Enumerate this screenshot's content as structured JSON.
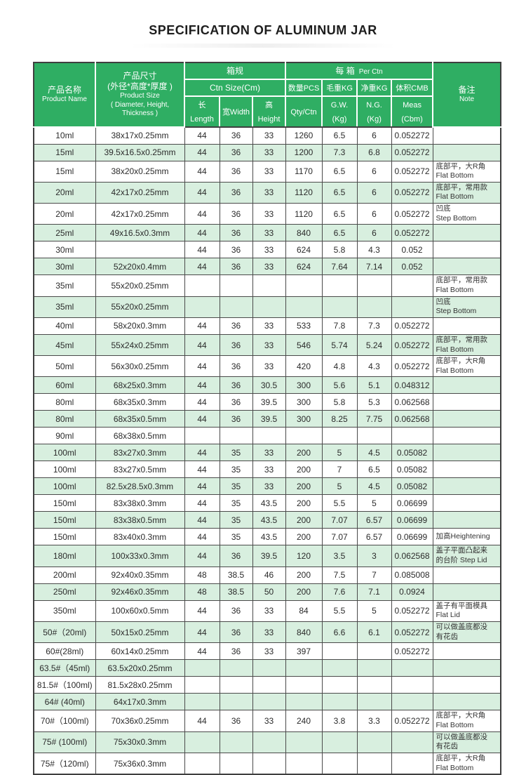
{
  "title": "SPECIFICATION OF ALUMINUM JAR",
  "colors": {
    "header_green": "#2fae63",
    "row_light_green": "#d8efdf",
    "row_white": "#ffffff",
    "border_dark": "#4a4a4a",
    "header_text": "#ffffff",
    "body_text": "#2b2b2b"
  },
  "table": {
    "header": {
      "product_name_zh": "产品名称",
      "product_name_en": "Product Name",
      "product_size_zh": "产品尺寸",
      "product_size_zh2": "(外径*高度*厚度 )",
      "product_size_en": "Product Size",
      "product_size_en2": "( Diameter, Height, Thickness )",
      "ctn_group_zh": "箱规",
      "ctn_group_en": "Ctn Size(Cm)",
      "length": "长Length",
      "width": "宽Width",
      "height": "高Height",
      "per_ctn_zh": "每  箱",
      "per_ctn_en": "Per Ctn",
      "qty_zh": "数量PCS",
      "qty_en": "Qty/Ctn",
      "gw_zh": "毛重KG",
      "gw_en": "G.W.(Kg)",
      "nw_zh": "净重KG",
      "nw_en": "N.G.(Kg)",
      "meas_zh": "体积CMB",
      "meas_en": "Meas (Cbm)",
      "note_zh": "备注",
      "note_en": "Note"
    },
    "rows": [
      {
        "name": "10ml",
        "size": "38x17x0.25mm",
        "l": "44",
        "w": "36",
        "h": "33",
        "qty": "1260",
        "gw": "6.5",
        "nw": "6",
        "meas": "0.052272",
        "note": []
      },
      {
        "name": "15ml",
        "size": "39.5x16.5x0.25mm",
        "l": "44",
        "w": "36",
        "h": "33",
        "qty": "1200",
        "gw": "7.3",
        "nw": "6.8",
        "meas": "0.052272",
        "note": []
      },
      {
        "name": "15ml",
        "size": "38x20x0.25mm",
        "l": "44",
        "w": "36",
        "h": "33",
        "qty": "1170",
        "gw": "6.5",
        "nw": "6",
        "meas": "0.052272",
        "note": [
          "底部平，大R角",
          "Flat Bottom"
        ]
      },
      {
        "name": "20ml",
        "size": "42x17x0.25mm",
        "l": "44",
        "w": "36",
        "h": "33",
        "qty": "1120",
        "gw": "6.5",
        "nw": "6",
        "meas": "0.052272",
        "note": [
          "底部平，常用款",
          "Flat Bottom"
        ]
      },
      {
        "name": "20ml",
        "size": "42x17x0.25mm",
        "l": "44",
        "w": "36",
        "h": "33",
        "qty": "1120",
        "gw": "6.5",
        "nw": "6",
        "meas": "0.052272",
        "note": [
          "凹底",
          "Step Bottom"
        ]
      },
      {
        "name": "25ml",
        "size": "49x16.5x0.3mm",
        "l": "44",
        "w": "36",
        "h": "33",
        "qty": "840",
        "gw": "6.5",
        "nw": "6",
        "meas": "0.052272",
        "note": []
      },
      {
        "name": "30ml",
        "size": "",
        "l": "44",
        "w": "36",
        "h": "33",
        "qty": "624",
        "gw": "5.8",
        "nw": "4.3",
        "meas": "0.052",
        "note": []
      },
      {
        "name": "30ml",
        "size": "52x20x0.4mm",
        "l": "44",
        "w": "36",
        "h": "33",
        "qty": "624",
        "gw": "7.64",
        "nw": "7.14",
        "meas": "0.052",
        "note": []
      },
      {
        "name": "35ml",
        "size": "55x20x0.25mm",
        "l": "",
        "w": "",
        "h": "",
        "qty": "",
        "gw": "",
        "nw": "",
        "meas": "",
        "note": [
          "底部平，常用款",
          "Flat Bottom"
        ]
      },
      {
        "name": "35ml",
        "size": "55x20x0.25mm",
        "l": "",
        "w": "",
        "h": "",
        "qty": "",
        "gw": "",
        "nw": "",
        "meas": "",
        "note": [
          "凹底",
          "Step Bottom"
        ]
      },
      {
        "name": "40ml",
        "size": "58x20x0.3mm",
        "l": "44",
        "w": "36",
        "h": "33",
        "qty": "533",
        "gw": "7.8",
        "nw": "7.3",
        "meas": "0.052272",
        "note": []
      },
      {
        "name": "45ml",
        "size": "55x24x0.25mm",
        "l": "44",
        "w": "36",
        "h": "33",
        "qty": "546",
        "gw": "5.74",
        "nw": "5.24",
        "meas": "0.052272",
        "note": [
          "底部平，常用款",
          "Flat Bottom"
        ]
      },
      {
        "name": "50ml",
        "size": "56x30x0.25mm",
        "l": "44",
        "w": "36",
        "h": "33",
        "qty": "420",
        "gw": "4.8",
        "nw": "4.3",
        "meas": "0.052272",
        "note": [
          "底部平，大R角",
          "Flat Bottom"
        ]
      },
      {
        "name": "60ml",
        "size": "68x25x0.3mm",
        "l": "44",
        "w": "36",
        "h": "30.5",
        "qty": "300",
        "gw": "5.6",
        "nw": "5.1",
        "meas": "0.048312",
        "note": []
      },
      {
        "name": "80ml",
        "size": "68x35x0.3mm",
        "l": "44",
        "w": "36",
        "h": "39.5",
        "qty": "300",
        "gw": "5.8",
        "nw": "5.3",
        "meas": "0.062568",
        "note": []
      },
      {
        "name": "80ml",
        "size": "68x35x0.5mm",
        "l": "44",
        "w": "36",
        "h": "39.5",
        "qty": "300",
        "gw": "8.25",
        "nw": "7.75",
        "meas": "0.062568",
        "note": []
      },
      {
        "name": "90ml",
        "size": "68x38x0.5mm",
        "l": "",
        "w": "",
        "h": "",
        "qty": "",
        "gw": "",
        "nw": "",
        "meas": "",
        "note": []
      },
      {
        "name": "100ml",
        "size": "83x27x0.3mm",
        "l": "44",
        "w": "35",
        "h": "33",
        "qty": "200",
        "gw": "5",
        "nw": "4.5",
        "meas": "0.05082",
        "note": []
      },
      {
        "name": "100ml",
        "size": "83x27x0.5mm",
        "l": "44",
        "w": "35",
        "h": "33",
        "qty": "200",
        "gw": "7",
        "nw": "6.5",
        "meas": "0.05082",
        "note": []
      },
      {
        "name": "100ml",
        "size": "82.5x28.5x0.3mm",
        "l": "44",
        "w": "35",
        "h": "33",
        "qty": "200",
        "gw": "5",
        "nw": "4.5",
        "meas": "0.05082",
        "note": []
      },
      {
        "name": "150ml",
        "size": "83x38x0.3mm",
        "l": "44",
        "w": "35",
        "h": "43.5",
        "qty": "200",
        "gw": "5.5",
        "nw": "5",
        "meas": "0.06699",
        "note": []
      },
      {
        "name": "150ml",
        "size": "83x38x0.5mm",
        "l": "44",
        "w": "35",
        "h": "43.5",
        "qty": "200",
        "gw": "7.07",
        "nw": "6.57",
        "meas": "0.06699",
        "note": []
      },
      {
        "name": "150ml",
        "size": "83x40x0.3mm",
        "l": "44",
        "w": "35",
        "h": "43.5",
        "qty": "200",
        "gw": "7.07",
        "nw": "6.57",
        "meas": "0.06699",
        "note": [
          "加高Heightening"
        ]
      },
      {
        "name": "180ml",
        "size": "100x33x0.3mm",
        "l": "44",
        "w": "36",
        "h": "39.5",
        "qty": "120",
        "gw": "3.5",
        "nw": "3",
        "meas": "0.062568",
        "note": [
          "盖子平面凸起来",
          "的台阶 Step Lid"
        ]
      },
      {
        "name": "200ml",
        "size": "92x40x0.35mm",
        "l": "48",
        "w": "38.5",
        "h": "46",
        "qty": "200",
        "gw": "7.5",
        "nw": "7",
        "meas": "0.085008",
        "note": []
      },
      {
        "name": "250ml",
        "size": "92x46x0.35mm",
        "l": "48",
        "w": "38.5",
        "h": "50",
        "qty": "200",
        "gw": "7.6",
        "nw": "7.1",
        "meas": "0.0924",
        "note": []
      },
      {
        "name": "350ml",
        "size": "100x60x0.5mm",
        "l": "44",
        "w": "36",
        "h": "33",
        "qty": "84",
        "gw": "5.5",
        "nw": "5",
        "meas": "0.052272",
        "note": [
          "盖子有平面模具",
          "Flat Lid"
        ]
      },
      {
        "name": "50#（20ml)",
        "size": "50x15x0.25mm",
        "l": "44",
        "w": "36",
        "h": "33",
        "qty": "840",
        "gw": "6.6",
        "nw": "6.1",
        "meas": "0.052272",
        "note": [
          "可以做盖底都没",
          "有花齿"
        ]
      },
      {
        "name": "60#(28ml)",
        "size": "60x14x0.25mm",
        "l": "44",
        "w": "36",
        "h": "33",
        "qty": "397",
        "gw": "",
        "nw": "",
        "meas": "0.052272",
        "note": []
      },
      {
        "name": "63.5#（45ml)",
        "size": "63.5x20x0.25mm",
        "l": "",
        "w": "",
        "h": "",
        "qty": "",
        "gw": "",
        "nw": "",
        "meas": "",
        "note": []
      },
      {
        "name": "81.5#（100ml)",
        "size": "81.5x28x0.25mm",
        "l": "",
        "w": "",
        "h": "",
        "qty": "",
        "gw": "",
        "nw": "",
        "meas": "",
        "note": []
      },
      {
        "name": "64# (40ml)",
        "size": "64x17x0.3mm",
        "l": "",
        "w": "",
        "h": "",
        "qty": "",
        "gw": "",
        "nw": "",
        "meas": "",
        "note": []
      },
      {
        "name": "70#（100ml)",
        "size": "70x36x0.25mm",
        "l": "44",
        "w": "36",
        "h": "33",
        "qty": "240",
        "gw": "3.8",
        "nw": "3.3",
        "meas": "0.052272",
        "note": [
          "底部平，大R角",
          "Flat Bottom"
        ]
      },
      {
        "name": "75#  (100ml)",
        "size": "75x30x0.3mm",
        "l": "",
        "w": "",
        "h": "",
        "qty": "",
        "gw": "",
        "nw": "",
        "meas": "",
        "note": [
          "可以做盖底都没",
          "有花齿"
        ]
      },
      {
        "name": "75#（120ml)",
        "size": "75x36x0.3mm",
        "l": "",
        "w": "",
        "h": "",
        "qty": "",
        "gw": "",
        "nw": "",
        "meas": "",
        "note": [
          "底部平，大R角",
          "Flat Bottom"
        ]
      }
    ]
  }
}
